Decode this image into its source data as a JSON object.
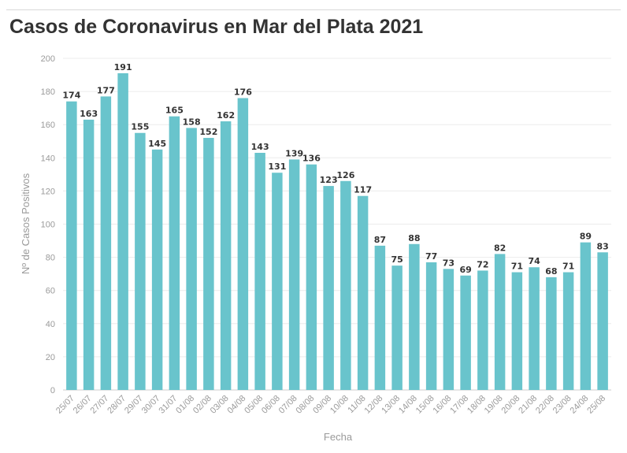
{
  "chart_data": {
    "type": "bar",
    "title": "Casos de Coronavirus en Mar del Plata 2021",
    "xlabel": "Fecha",
    "ylabel": "Nº de Casos Positivos",
    "ylim": [
      0,
      200
    ],
    "yticks": [
      0,
      20,
      40,
      60,
      80,
      100,
      120,
      140,
      160,
      180,
      200
    ],
    "grid": true,
    "legend": "none",
    "bar_color": "#69c4cc",
    "categories": [
      "25/07",
      "26/07",
      "27/07",
      "28/07",
      "29/07",
      "30/07",
      "31/07",
      "01/08",
      "02/08",
      "03/08",
      "04/08",
      "05/08",
      "06/08",
      "07/08",
      "08/08",
      "09/08",
      "10/08",
      "11/08",
      "12/08",
      "13/08",
      "14/08",
      "15/08",
      "16/08",
      "17/08",
      "18/08",
      "19/08",
      "20/08",
      "21/08",
      "22/08",
      "23/08",
      "24/08",
      "25/08"
    ],
    "values": [
      174,
      163,
      177,
      191,
      155,
      145,
      165,
      158,
      152,
      162,
      176,
      143,
      131,
      139,
      136,
      123,
      126,
      117,
      87,
      75,
      88,
      77,
      73,
      69,
      72,
      82,
      71,
      74,
      68,
      71,
      89,
      83
    ]
  }
}
